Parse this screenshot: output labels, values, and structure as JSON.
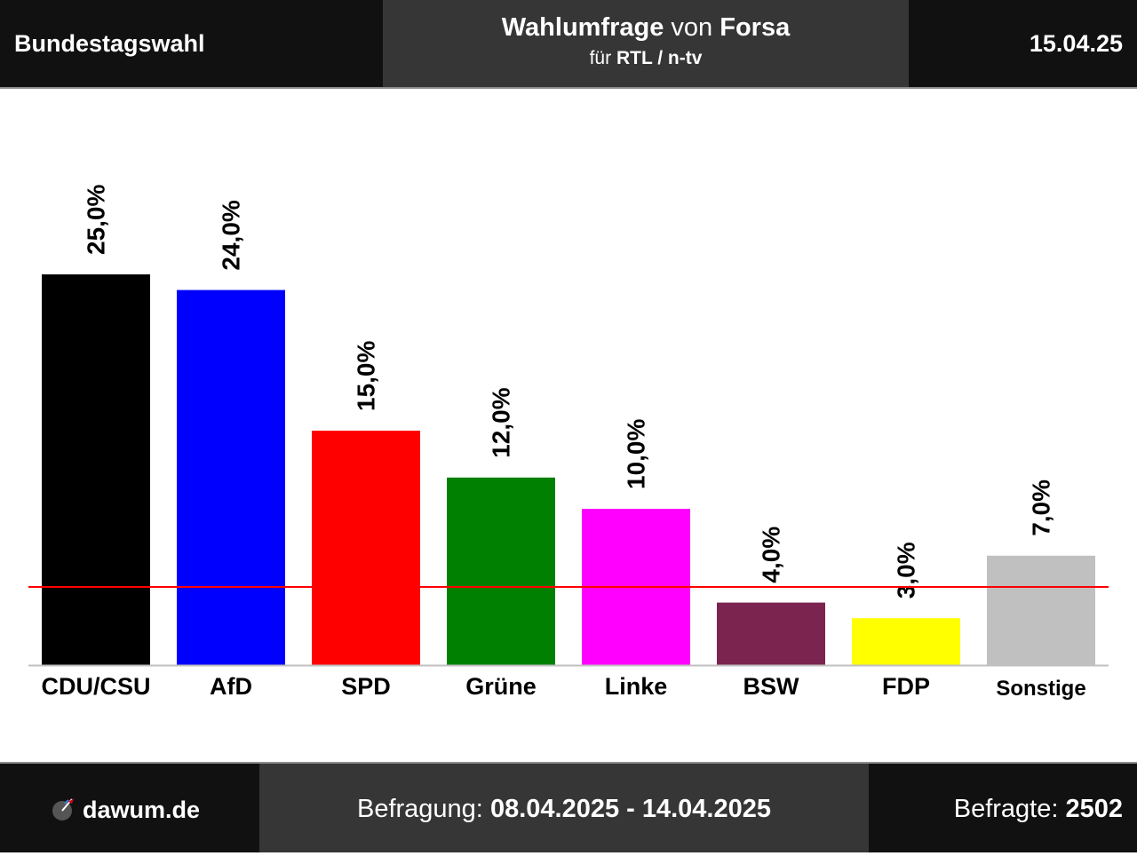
{
  "header": {
    "left": "Bundestagswahl",
    "title_main": "Wahlumfrage",
    "title_von": "von",
    "title_institute": "Forsa",
    "sub_fuer": "für",
    "sub_client": "RTL / n-tv",
    "date": "15.04.25"
  },
  "footer": {
    "site": "dawum.de",
    "period_label": "Befragung:",
    "period_value": "08.04.2025 - 14.04.2025",
    "respondents_label": "Befragte:",
    "respondents_value": "2502"
  },
  "chart_data": {
    "type": "bar",
    "categories": [
      "CDU/CSU",
      "AfD",
      "SPD",
      "Grüne",
      "Linke",
      "BSW",
      "FDP",
      "Sonstige"
    ],
    "values": [
      25.0,
      24.0,
      15.0,
      12.0,
      10.0,
      4.0,
      3.0,
      7.0
    ],
    "labels": [
      "25,0%",
      "24,0%",
      "15,0%",
      "12,0%",
      "10,0%",
      "4,0%",
      "3,0%",
      "7,0%"
    ],
    "colors": [
      "#000000",
      "#0000ff",
      "#ff0000",
      "#008000",
      "#ff00ff",
      "#7b2450",
      "#ffff00",
      "#c0c0c0"
    ],
    "threshold": 5.0,
    "threshold_color": "#ff0000",
    "ylim": [
      0,
      25
    ],
    "title": "",
    "xlabel": "",
    "ylabel": ""
  }
}
